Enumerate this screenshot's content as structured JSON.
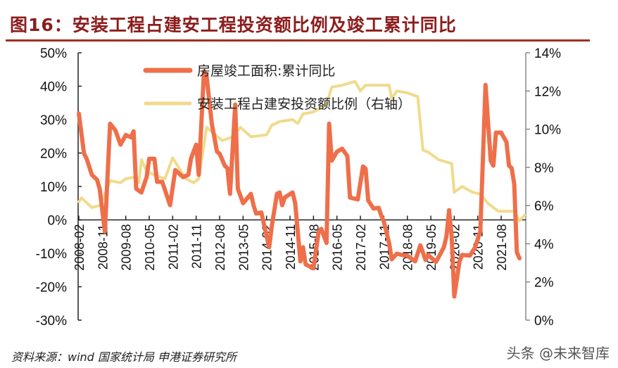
{
  "title": "图16：安装工程占建安工程投资额比例及竣工累计同比",
  "source": "资料来源：wind 国家统计局 申港证券研究所",
  "watermark": "头条 @未来智库",
  "chart_data": {
    "type": "line",
    "title": "",
    "left_axis": {
      "ylim": [
        -30,
        50
      ],
      "ticks": [
        -30,
        -20,
        -10,
        0,
        10,
        20,
        30,
        40,
        50
      ],
      "labels": [
        "-30%",
        "-20%",
        "-10%",
        "0%",
        "10%",
        "20%",
        "30%",
        "40%",
        "50%"
      ]
    },
    "right_axis": {
      "ylim": [
        0,
        14
      ],
      "ticks": [
        0,
        2,
        4,
        6,
        8,
        10,
        12,
        14
      ],
      "labels": [
        "0%",
        "2%",
        "4%",
        "6%",
        "8%",
        "10%",
        "12%",
        "14%"
      ]
    },
    "x_ticks": [
      "2008-02",
      "2008-11",
      "2009-08",
      "2010-05",
      "2011-02",
      "2011-11",
      "2012-08",
      "2013-05",
      "2014-02",
      "2014-11",
      "2015-08",
      "2016-05",
      "2017-02",
      "2017-11",
      "2018-08",
      "2019-05",
      "2020-02",
      "2020-11",
      "2021-08"
    ],
    "grid": false,
    "legend_placement": "top-center",
    "series": [
      {
        "name": "房屋竣工面积:累计同比",
        "axis": "left",
        "color": "#ee6f4a",
        "x": [
          "2008-02",
          "2008-04",
          "2008-05",
          "2008-07",
          "2008-09",
          "2008-10",
          "2008-12",
          "2009-02",
          "2009-04",
          "2009-06",
          "2009-08",
          "2009-10",
          "2009-11",
          "2009-12",
          "2010-02",
          "2010-04",
          "2010-05",
          "2010-07",
          "2010-08",
          "2010-10",
          "2011-01",
          "2011-03",
          "2011-06",
          "2011-08",
          "2011-09",
          "2011-11",
          "2011-12",
          "2012-02",
          "2012-03",
          "2012-05",
          "2012-07",
          "2012-08",
          "2012-10",
          "2012-11",
          "2012-12",
          "2013-02",
          "2013-03",
          "2013-05",
          "2013-08",
          "2013-09",
          "2013-10",
          "2013-12",
          "2014-03",
          "2014-04",
          "2014-06",
          "2014-07",
          "2014-08",
          "2014-09",
          "2014-12",
          "2015-01",
          "2015-03",
          "2015-04",
          "2015-05",
          "2015-08",
          "2015-10",
          "2015-11",
          "2016-01",
          "2016-02",
          "2016-03",
          "2016-05",
          "2016-07",
          "2016-09",
          "2016-10",
          "2017-01",
          "2017-03",
          "2017-04",
          "2017-05",
          "2017-07",
          "2017-09",
          "2017-10",
          "2017-11",
          "2018-01",
          "2018-02",
          "2018-04",
          "2018-06",
          "2018-08",
          "2018-11",
          "2019-01",
          "2019-03",
          "2019-04",
          "2019-07",
          "2019-10",
          "2019-11",
          "2019-12",
          "2020-01",
          "2020-02",
          "2020-04",
          "2020-05",
          "2020-08",
          "2020-10",
          "2020-12",
          "2021-01",
          "2021-02",
          "2021-03",
          "2021-04",
          "2021-05",
          "2021-06",
          "2021-08",
          "2021-10",
          "2021-11",
          "2021-12",
          "2022-01",
          "2022-02",
          "2022-03"
        ],
        "y": [
          31.8,
          19.8,
          18.3,
          13.5,
          12.0,
          9.3,
          -3.5,
          28.8,
          26.8,
          22.5,
          25.4,
          24.7,
          26.5,
          9.3,
          8.2,
          12.8,
          18.3,
          18.3,
          11.4,
          11.4,
          4.4,
          14.9,
          12.8,
          13.5,
          18.3,
          22.5,
          13.5,
          44.4,
          43.0,
          28.8,
          20.4,
          19.8,
          16.2,
          15.5,
          7.8,
          34.5,
          9.3,
          5.0,
          7.8,
          4.4,
          1.9,
          2.2,
          -8.2,
          -1.9,
          7.8,
          8.2,
          4.4,
          6.7,
          8.2,
          5.0,
          -12.4,
          -8.2,
          -13.3,
          -14.5,
          -3.4,
          -2.7,
          -6.9,
          28.8,
          17.7,
          20.4,
          21.3,
          19.1,
          6.7,
          6.1,
          16.0,
          15.3,
          5.8,
          3.4,
          3.6,
          1.3,
          -0.6,
          -6.9,
          -11.8,
          -10.1,
          -10.5,
          -10.7,
          -12.4,
          -7.6,
          -12.0,
          -10.5,
          -12.6,
          -8.2,
          -4.9,
          2.9,
          -4.9,
          -22.9,
          -12.4,
          -10.5,
          -10.7,
          -8.2,
          -3.4,
          18.3,
          40.4,
          28.8,
          17.7,
          16.2,
          26.1,
          26.1,
          23.3,
          16.2,
          15.5,
          10.7,
          -9.7,
          -11.5
        ]
      },
      {
        "name": "安装工程占建安投资额比例（右轴）",
        "axis": "right",
        "color": "#f0db8c",
        "x": [
          "2008-02",
          "2008-03",
          "2008-07",
          "2008-10",
          "2008-12",
          "2009-02",
          "2009-06",
          "2009-08",
          "2009-12",
          "2010-01",
          "2010-02",
          "2010-04",
          "2010-07",
          "2010-11",
          "2011-02",
          "2011-07",
          "2011-10",
          "2011-12",
          "2012-03",
          "2012-09",
          "2013-01",
          "2013-04",
          "2013-08",
          "2014-02",
          "2014-04",
          "2014-07",
          "2014-12",
          "2015-02",
          "2015-04",
          "2015-08",
          "2016-01",
          "2016-03",
          "2016-07",
          "2016-12",
          "2017-02",
          "2017-04",
          "2018-01",
          "2018-02",
          "2018-04",
          "2018-08",
          "2018-12",
          "2019-02",
          "2019-04",
          "2019-08",
          "2020-01",
          "2020-02",
          "2020-05",
          "2020-09",
          "2020-12",
          "2021-03",
          "2021-07",
          "2022-01",
          "2022-03",
          "2022-05"
        ],
        "y": [
          6.2,
          6.4,
          5.9,
          6.0,
          6.6,
          7.3,
          7.2,
          7.4,
          7.5,
          7.2,
          8.4,
          7.8,
          7.6,
          7.4,
          8.5,
          7.4,
          7.2,
          7.4,
          10.1,
          9.4,
          9.6,
          10.1,
          9.6,
          9.7,
          10.2,
          10.4,
          10.5,
          10.3,
          10.8,
          10.9,
          11.3,
          12.2,
          12.3,
          12.5,
          12.0,
          12.3,
          12.3,
          11.6,
          12.0,
          11.9,
          11.7,
          8.9,
          8.8,
          8.4,
          8.2,
          6.7,
          7.0,
          6.7,
          6.6,
          6.1,
          5.7,
          5.7,
          5.2,
          5.5
        ]
      }
    ]
  }
}
